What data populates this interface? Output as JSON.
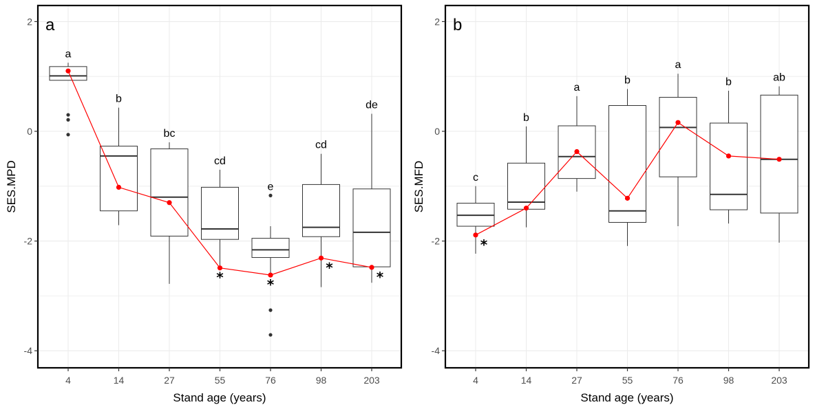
{
  "chart_data": [
    {
      "type": "box",
      "panel_label": "a",
      "title": "",
      "xlabel": "Stand age (years)",
      "ylabel": "SES.MPD",
      "ylim": [
        -4.3,
        2.3
      ],
      "yticks": [
        2,
        0,
        -2,
        -4
      ],
      "ytick_labels": [
        "2",
        "0",
        "-2",
        "-4"
      ],
      "categories": [
        "4",
        "14",
        "27",
        "55",
        "76",
        "98",
        "203"
      ],
      "grid": true,
      "boxes": [
        {
          "category": "4",
          "whisker_low": 0.93,
          "q1": 0.93,
          "median": 1.01,
          "q3": 1.18,
          "whisker_high": 1.25,
          "outliers": [
            0.3,
            0.21,
            -0.06
          ]
        },
        {
          "category": "14",
          "whisker_low": -1.71,
          "q1": -1.45,
          "median": -0.45,
          "q3": -0.27,
          "whisker_high": 0.43,
          "outliers": []
        },
        {
          "category": "27",
          "whisker_low": -2.78,
          "q1": -1.91,
          "median": -1.2,
          "q3": -0.32,
          "whisker_high": -0.2,
          "outliers": []
        },
        {
          "category": "55",
          "whisker_low": -2.45,
          "q1": -1.97,
          "median": -1.78,
          "q3": -1.02,
          "whisker_high": -0.7,
          "outliers": []
        },
        {
          "category": "76",
          "whisker_low": -2.61,
          "q1": -2.3,
          "median": -2.16,
          "q3": -1.95,
          "whisker_high": -1.73,
          "outliers": [
            -1.17,
            -3.26,
            -3.71
          ]
        },
        {
          "category": "98",
          "whisker_low": -2.84,
          "q1": -1.92,
          "median": -1.75,
          "q3": -0.97,
          "whisker_high": -0.41,
          "outliers": []
        },
        {
          "category": "203",
          "whisker_low": -2.76,
          "q1": -2.47,
          "median": -1.84,
          "q3": -1.05,
          "whisker_high": 0.32,
          "outliers": []
        }
      ],
      "letters": [
        "a",
        "b",
        "bc",
        "cd",
        "e",
        "cd",
        "de"
      ],
      "observed_line": {
        "name": "observed",
        "color": "#ff0000",
        "values": [
          1.1,
          -1.02,
          -1.3,
          -2.49,
          -2.62,
          -2.31,
          -2.48
        ]
      },
      "significance_markers": [
        "",
        "",
        "",
        "*",
        "*",
        "*",
        "*"
      ]
    },
    {
      "type": "box",
      "panel_label": "b",
      "title": "",
      "xlabel": "Stand age (years)",
      "ylabel": "SES.MFD",
      "ylim": [
        -4.3,
        2.3
      ],
      "yticks": [
        2,
        0,
        -2,
        -4
      ],
      "ytick_labels": [
        "2",
        "0",
        "-2",
        "-4"
      ],
      "categories": [
        "4",
        "14",
        "27",
        "55",
        "76",
        "98",
        "203"
      ],
      "grid": true,
      "boxes": [
        {
          "category": "4",
          "whisker_low": -2.23,
          "q1": -1.73,
          "median": -1.53,
          "q3": -1.31,
          "whisker_high": -1.0,
          "outliers": []
        },
        {
          "category": "14",
          "whisker_low": -1.75,
          "q1": -1.42,
          "median": -1.29,
          "q3": -0.58,
          "whisker_high": 0.09,
          "outliers": []
        },
        {
          "category": "27",
          "whisker_low": -1.1,
          "q1": -0.86,
          "median": -0.46,
          "q3": 0.1,
          "whisker_high": 0.64,
          "outliers": []
        },
        {
          "category": "55",
          "whisker_low": -2.09,
          "q1": -1.66,
          "median": -1.45,
          "q3": 0.47,
          "whisker_high": 0.77,
          "outliers": []
        },
        {
          "category": "76",
          "whisker_low": -1.73,
          "q1": -0.83,
          "median": 0.07,
          "q3": 0.62,
          "whisker_high": 1.05,
          "outliers": []
        },
        {
          "category": "98",
          "whisker_low": -1.68,
          "q1": -1.43,
          "median": -1.15,
          "q3": 0.15,
          "whisker_high": 0.74,
          "outliers": []
        },
        {
          "category": "203",
          "whisker_low": -2.03,
          "q1": -1.49,
          "median": -0.51,
          "q3": 0.66,
          "whisker_high": 0.82,
          "outliers": []
        }
      ],
      "letters": [
        "c",
        "b",
        "a",
        "b",
        "a",
        "b",
        "ab"
      ],
      "observed_line": {
        "name": "observed",
        "color": "#ff0000",
        "values": [
          -1.89,
          -1.4,
          -0.37,
          -1.22,
          0.16,
          -0.45,
          -0.51
        ]
      },
      "significance_markers": [
        "*",
        "",
        "",
        "",
        "",
        "",
        ""
      ]
    }
  ]
}
